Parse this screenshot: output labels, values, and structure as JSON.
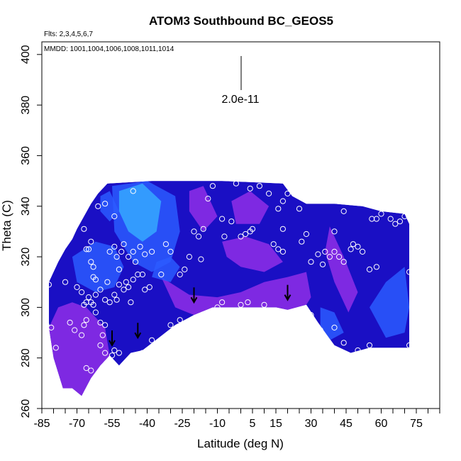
{
  "chart_data": {
    "type": "heatmap",
    "title": "ATOM3 Southbound BC_GEOS5",
    "annotations": {
      "flights": "Flts: 2,3,4,5,6,7",
      "dates": "MMDD: 1001,1004,1006,1008,1011,1014",
      "scale_label": "2.0e-11"
    },
    "xlabel": "Latitude (deg N)",
    "ylabel": "Theta (C)",
    "xlim": [
      -85,
      85
    ],
    "ylim": [
      260,
      405
    ],
    "x_ticks": [
      -85,
      -70,
      -55,
      -40,
      -25,
      -10,
      5,
      15,
      30,
      45,
      60,
      75
    ],
    "x_minor_step": 5,
    "y_ticks": [
      260,
      280,
      300,
      320,
      340,
      360,
      380,
      400
    ],
    "colors": {
      "low": "#1a0fc4",
      "mid": "#2c5bff",
      "high": "#35a8ff",
      "alt": "#8a2ce6",
      "marker": "#ffffff",
      "arrow": "#000000"
    },
    "field_top_boundary": [
      [
        -82,
        310
      ],
      [
        -78,
        318
      ],
      [
        -75,
        323
      ],
      [
        -72,
        327
      ],
      [
        -70,
        331
      ],
      [
        -67,
        336
      ],
      [
        -64,
        341
      ],
      [
        -61,
        345
      ],
      [
        -57,
        349
      ],
      [
        -38,
        350
      ],
      [
        -8,
        350
      ],
      [
        18,
        349
      ],
      [
        22,
        344
      ],
      [
        28,
        341
      ],
      [
        40,
        341
      ],
      [
        52,
        340
      ],
      [
        60,
        338
      ],
      [
        70,
        337
      ],
      [
        72,
        333
      ]
    ],
    "field_bottom_boundary": [
      [
        72,
        284
      ],
      [
        70,
        284
      ],
      [
        55,
        284
      ],
      [
        47,
        282
      ],
      [
        40,
        285
      ],
      [
        33,
        294
      ],
      [
        28,
        301
      ],
      [
        20,
        299
      ],
      [
        15,
        300
      ],
      [
        0,
        300
      ],
      [
        -8,
        300
      ],
      [
        -12,
        300
      ],
      [
        -20,
        297
      ],
      [
        -28,
        293
      ],
      [
        -35,
        288
      ],
      [
        -42,
        283
      ],
      [
        -47,
        282
      ],
      [
        -52,
        277
      ],
      [
        -56,
        281
      ],
      [
        -60,
        277
      ],
      [
        -64,
        272
      ],
      [
        -68,
        265
      ],
      [
        -72,
        268
      ],
      [
        -76,
        268
      ],
      [
        -80,
        280
      ],
      [
        -82,
        292
      ]
    ],
    "color_regions": [
      {
        "level": "alt",
        "polygon": [
          [
            -82,
            292
          ],
          [
            -78,
            300
          ],
          [
            -72,
            302
          ],
          [
            -66,
            300
          ],
          [
            -62,
            296
          ],
          [
            -58,
            292
          ],
          [
            -56,
            281
          ],
          [
            -60,
            277
          ],
          [
            -64,
            272
          ],
          [
            -68,
            265
          ],
          [
            -72,
            268
          ],
          [
            -76,
            268
          ],
          [
            -80,
            280
          ]
        ]
      },
      {
        "level": "alt",
        "polygon": [
          [
            -34,
            312
          ],
          [
            -22,
            305
          ],
          [
            -10,
            304
          ],
          [
            0,
            306
          ],
          [
            10,
            310
          ],
          [
            20,
            312
          ],
          [
            28,
            314
          ],
          [
            30,
            304
          ],
          [
            28,
            301
          ],
          [
            20,
            299
          ],
          [
            15,
            300
          ],
          [
            0,
            300
          ],
          [
            -8,
            300
          ],
          [
            -12,
            300
          ],
          [
            -20,
            297
          ],
          [
            -28,
            300
          ]
        ]
      },
      {
        "level": "alt",
        "polygon": [
          [
            -8,
            326
          ],
          [
            2,
            328
          ],
          [
            12,
            325
          ],
          [
            18,
            318
          ],
          [
            10,
            314
          ],
          [
            0,
            316
          ],
          [
            -6,
            320
          ]
        ]
      },
      {
        "level": "alt",
        "polygon": [
          [
            -4,
            342
          ],
          [
            4,
            346
          ],
          [
            12,
            340
          ],
          [
            8,
            333
          ],
          [
            -2,
            333
          ]
        ]
      },
      {
        "level": "alt",
        "polygon": [
          [
            -22,
            346
          ],
          [
            -16,
            348
          ],
          [
            -10,
            336
          ],
          [
            -16,
            330
          ],
          [
            -22,
            338
          ]
        ]
      },
      {
        "level": "alt",
        "polygon": [
          [
            38,
            332
          ],
          [
            44,
            320
          ],
          [
            50,
            306
          ],
          [
            46,
            298
          ],
          [
            40,
            310
          ],
          [
            36,
            322
          ]
        ]
      },
      {
        "level": "mid",
        "polygon": [
          [
            -72,
            320
          ],
          [
            -62,
            326
          ],
          [
            -54,
            324
          ],
          [
            -50,
            316
          ],
          [
            -54,
            308
          ],
          [
            -62,
            306
          ],
          [
            -70,
            310
          ]
        ]
      },
      {
        "level": "mid",
        "polygon": [
          [
            -55,
            348
          ],
          [
            -40,
            350
          ],
          [
            -28,
            344
          ],
          [
            -26,
            330
          ],
          [
            -30,
            318
          ],
          [
            -38,
            314
          ],
          [
            -46,
            318
          ],
          [
            -54,
            330
          ]
        ]
      },
      {
        "level": "high",
        "polygon": [
          [
            -52,
            346
          ],
          [
            -42,
            349
          ],
          [
            -34,
            342
          ],
          [
            -36,
            330
          ],
          [
            -42,
            326
          ],
          [
            -48,
            330
          ],
          [
            -52,
            338
          ]
        ]
      },
      {
        "level": "mid",
        "polygon": [
          [
            -60,
            344
          ],
          [
            -56,
            346
          ],
          [
            -52,
            338
          ],
          [
            -56,
            334
          ],
          [
            -60,
            338
          ]
        ]
      },
      {
        "level": "mid",
        "polygon": [
          [
            -38,
            312
          ],
          [
            -30,
            310
          ],
          [
            -26,
            316
          ],
          [
            -30,
            320
          ],
          [
            -36,
            318
          ]
        ]
      },
      {
        "level": "mid",
        "polygon": [
          [
            55,
            300
          ],
          [
            62,
            310
          ],
          [
            70,
            316
          ],
          [
            72,
            300
          ],
          [
            70,
            290
          ],
          [
            62,
            288
          ]
        ]
      },
      {
        "level": "mid",
        "polygon": [
          [
            34,
            300
          ],
          [
            40,
            298
          ],
          [
            44,
            290
          ],
          [
            38,
            287
          ],
          [
            34,
            292
          ]
        ]
      }
    ],
    "points": [
      [
        -82,
        309
      ],
      [
        -83,
        293
      ],
      [
        -81,
        292
      ],
      [
        -79,
        284
      ],
      [
        -75,
        310
      ],
      [
        -73,
        294
      ],
      [
        -71,
        291
      ],
      [
        -70,
        308
      ],
      [
        -68,
        306
      ],
      [
        -67,
        301
      ],
      [
        -66,
        302
      ],
      [
        -65,
        304
      ],
      [
        -64,
        302
      ],
      [
        -63,
        301
      ],
      [
        -66,
        295
      ],
      [
        -67,
        293
      ],
      [
        -68,
        289
      ],
      [
        -62,
        298
      ],
      [
        -60,
        294
      ],
      [
        -58,
        293
      ],
      [
        -59,
        289
      ],
      [
        -60,
        285
      ],
      [
        -58,
        282
      ],
      [
        -55,
        281
      ],
      [
        -54,
        283
      ],
      [
        -66,
        276
      ],
      [
        -64,
        275
      ],
      [
        -63,
        270
      ],
      [
        -66,
        323
      ],
      [
        -67,
        331
      ],
      [
        -64,
        318
      ],
      [
        -63,
        312
      ],
      [
        -62,
        311
      ],
      [
        -62,
        305
      ],
      [
        -60,
        307
      ],
      [
        -58,
        303
      ],
      [
        -57,
        310
      ],
      [
        -56,
        302
      ],
      [
        -54,
        305
      ],
      [
        -53,
        303
      ],
      [
        -52,
        309
      ],
      [
        -50,
        307
      ],
      [
        -49,
        310
      ],
      [
        -48,
        308
      ],
      [
        -47,
        302
      ],
      [
        -46,
        311
      ],
      [
        -44,
        313
      ],
      [
        -42,
        313
      ],
      [
        -41,
        307
      ],
      [
        -39,
        308
      ],
      [
        -56,
        322
      ],
      [
        -54,
        324
      ],
      [
        -53,
        320
      ],
      [
        -52,
        315
      ],
      [
        -51,
        322
      ],
      [
        -50,
        325
      ],
      [
        -48,
        320
      ],
      [
        -46,
        322
      ],
      [
        -45,
        318
      ],
      [
        -43,
        324
      ],
      [
        -41,
        321
      ],
      [
        -38,
        322
      ],
      [
        -34,
        313
      ],
      [
        -32,
        325
      ],
      [
        -30,
        322
      ],
      [
        -26,
        313
      ],
      [
        -24,
        315
      ],
      [
        -22,
        320
      ],
      [
        -20,
        330
      ],
      [
        -18,
        328
      ],
      [
        -16,
        331
      ],
      [
        -54,
        336
      ],
      [
        -46,
        346
      ],
      [
        -58,
        341
      ],
      [
        -61,
        340
      ],
      [
        -64,
        326
      ],
      [
        -65,
        323
      ],
      [
        -63,
        316
      ],
      [
        -17,
        319
      ],
      [
        -14,
        343
      ],
      [
        -12,
        348
      ],
      [
        -8,
        335
      ],
      [
        -7,
        328
      ],
      [
        -4,
        334
      ],
      [
        0,
        328
      ],
      [
        2,
        329
      ],
      [
        4,
        330
      ],
      [
        5,
        331
      ],
      [
        4,
        347
      ],
      [
        8,
        348
      ],
      [
        12,
        345
      ],
      [
        -2,
        349
      ],
      [
        -8,
        302
      ],
      [
        0,
        301
      ],
      [
        3,
        302
      ],
      [
        10,
        301
      ],
      [
        14,
        325
      ],
      [
        16,
        323
      ],
      [
        18,
        322
      ],
      [
        18,
        331
      ],
      [
        16,
        339
      ],
      [
        18,
        342
      ],
      [
        25,
        339
      ],
      [
        20,
        345
      ],
      [
        26,
        326
      ],
      [
        28,
        329
      ],
      [
        30,
        318
      ],
      [
        33,
        321
      ],
      [
        35,
        317
      ],
      [
        38,
        320
      ],
      [
        40,
        322
      ],
      [
        42,
        320
      ],
      [
        44,
        318
      ],
      [
        47,
        323
      ],
      [
        50,
        324
      ],
      [
        52,
        322
      ],
      [
        55,
        315
      ],
      [
        58,
        316
      ],
      [
        60,
        337
      ],
      [
        64,
        335
      ],
      [
        66,
        333
      ],
      [
        68,
        334
      ],
      [
        70,
        336
      ],
      [
        72,
        314
      ],
      [
        56,
        335
      ],
      [
        58,
        335
      ],
      [
        40,
        330
      ],
      [
        44,
        338
      ],
      [
        48,
        325
      ],
      [
        36,
        322
      ],
      [
        34,
        291
      ],
      [
        40,
        292
      ],
      [
        44,
        286
      ],
      [
        50,
        283
      ],
      [
        55,
        285
      ],
      [
        72,
        285
      ],
      [
        30,
        297
      ],
      [
        -30,
        293
      ],
      [
        -26,
        295
      ],
      [
        -38,
        287
      ],
      [
        -42,
        282
      ],
      [
        -52,
        282
      ],
      [
        -10,
        300
      ]
    ],
    "arrows": [
      [
        -55,
        285
      ],
      [
        -44,
        288
      ],
      [
        -20,
        302
      ],
      [
        20,
        303
      ]
    ]
  }
}
